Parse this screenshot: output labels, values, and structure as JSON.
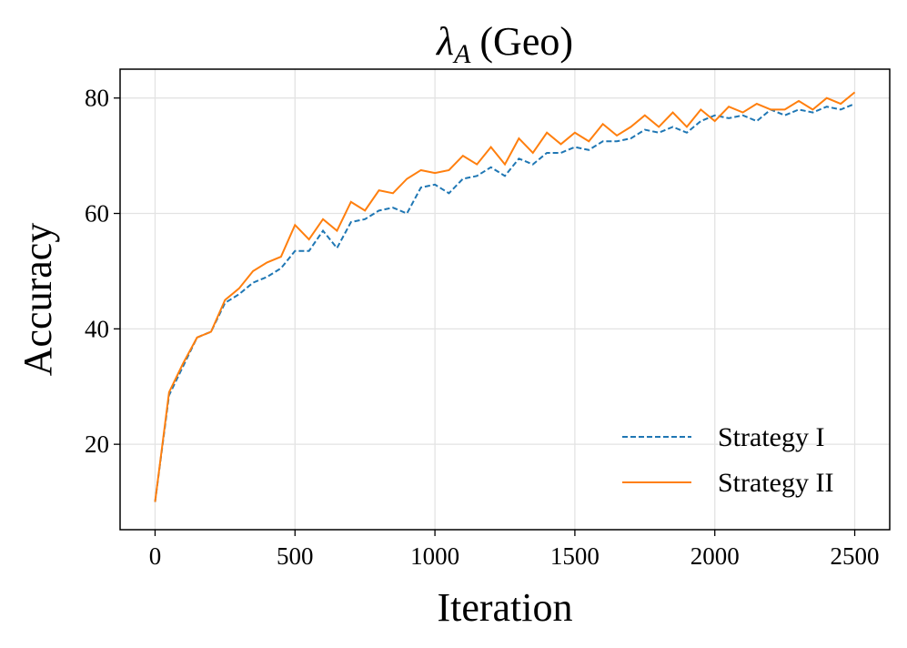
{
  "chart_data": {
    "type": "line",
    "title": {
      "symbol": "λ",
      "subscript": "A",
      "text": "(Geo)"
    },
    "xlabel": "Iteration",
    "ylabel": "Accuracy",
    "x": [
      0,
      50,
      100,
      150,
      200,
      250,
      300,
      350,
      400,
      450,
      500,
      550,
      600,
      650,
      700,
      750,
      800,
      850,
      900,
      950,
      1000,
      1050,
      1100,
      1150,
      1200,
      1250,
      1300,
      1350,
      1400,
      1450,
      1500,
      1550,
      1600,
      1650,
      1700,
      1750,
      1800,
      1850,
      1900,
      1950,
      2000,
      2050,
      2100,
      2150,
      2200,
      2250,
      2300,
      2350,
      2400,
      2450,
      2500
    ],
    "series": [
      {
        "name": "Strategy I",
        "color": "#1f77b4",
        "dash": true,
        "values": [
          10,
          28.5,
          33.5,
          38.5,
          39.5,
          44.5,
          46,
          48,
          49,
          50.5,
          53.5,
          53.5,
          57,
          54,
          58.5,
          59,
          60.5,
          61,
          60,
          64.5,
          65,
          63.5,
          66,
          66.5,
          68,
          66.5,
          69.5,
          68.5,
          70.5,
          70.5,
          71.5,
          71,
          72.5,
          72.5,
          73,
          74.5,
          74,
          75,
          74,
          76,
          77,
          76.5,
          77,
          76,
          78,
          77,
          78,
          77.5,
          78.5,
          78,
          79
        ]
      },
      {
        "name": "Strategy II",
        "color": "#ff7f0e",
        "dash": false,
        "values": [
          10,
          29,
          34,
          38.5,
          39.5,
          45,
          47,
          50,
          51.5,
          52.5,
          58,
          55.5,
          59,
          57,
          62,
          60.5,
          64,
          63.5,
          66,
          67.5,
          67,
          67.5,
          70,
          68.5,
          71.5,
          68.5,
          73,
          70.5,
          74,
          72,
          74,
          72.5,
          75.5,
          73.5,
          75,
          77,
          75,
          77.5,
          75,
          78,
          76,
          78.5,
          77.5,
          79,
          78,
          78,
          79.5,
          78,
          80,
          79,
          81
        ]
      }
    ],
    "xlim": [
      -125,
      2625
    ],
    "ylim": [
      5.2,
      85.0
    ],
    "xticks": [
      0,
      500,
      1000,
      1500,
      2000,
      2500
    ],
    "yticks": [
      20,
      40,
      60,
      80
    ],
    "grid": true,
    "legend": "lower right"
  }
}
